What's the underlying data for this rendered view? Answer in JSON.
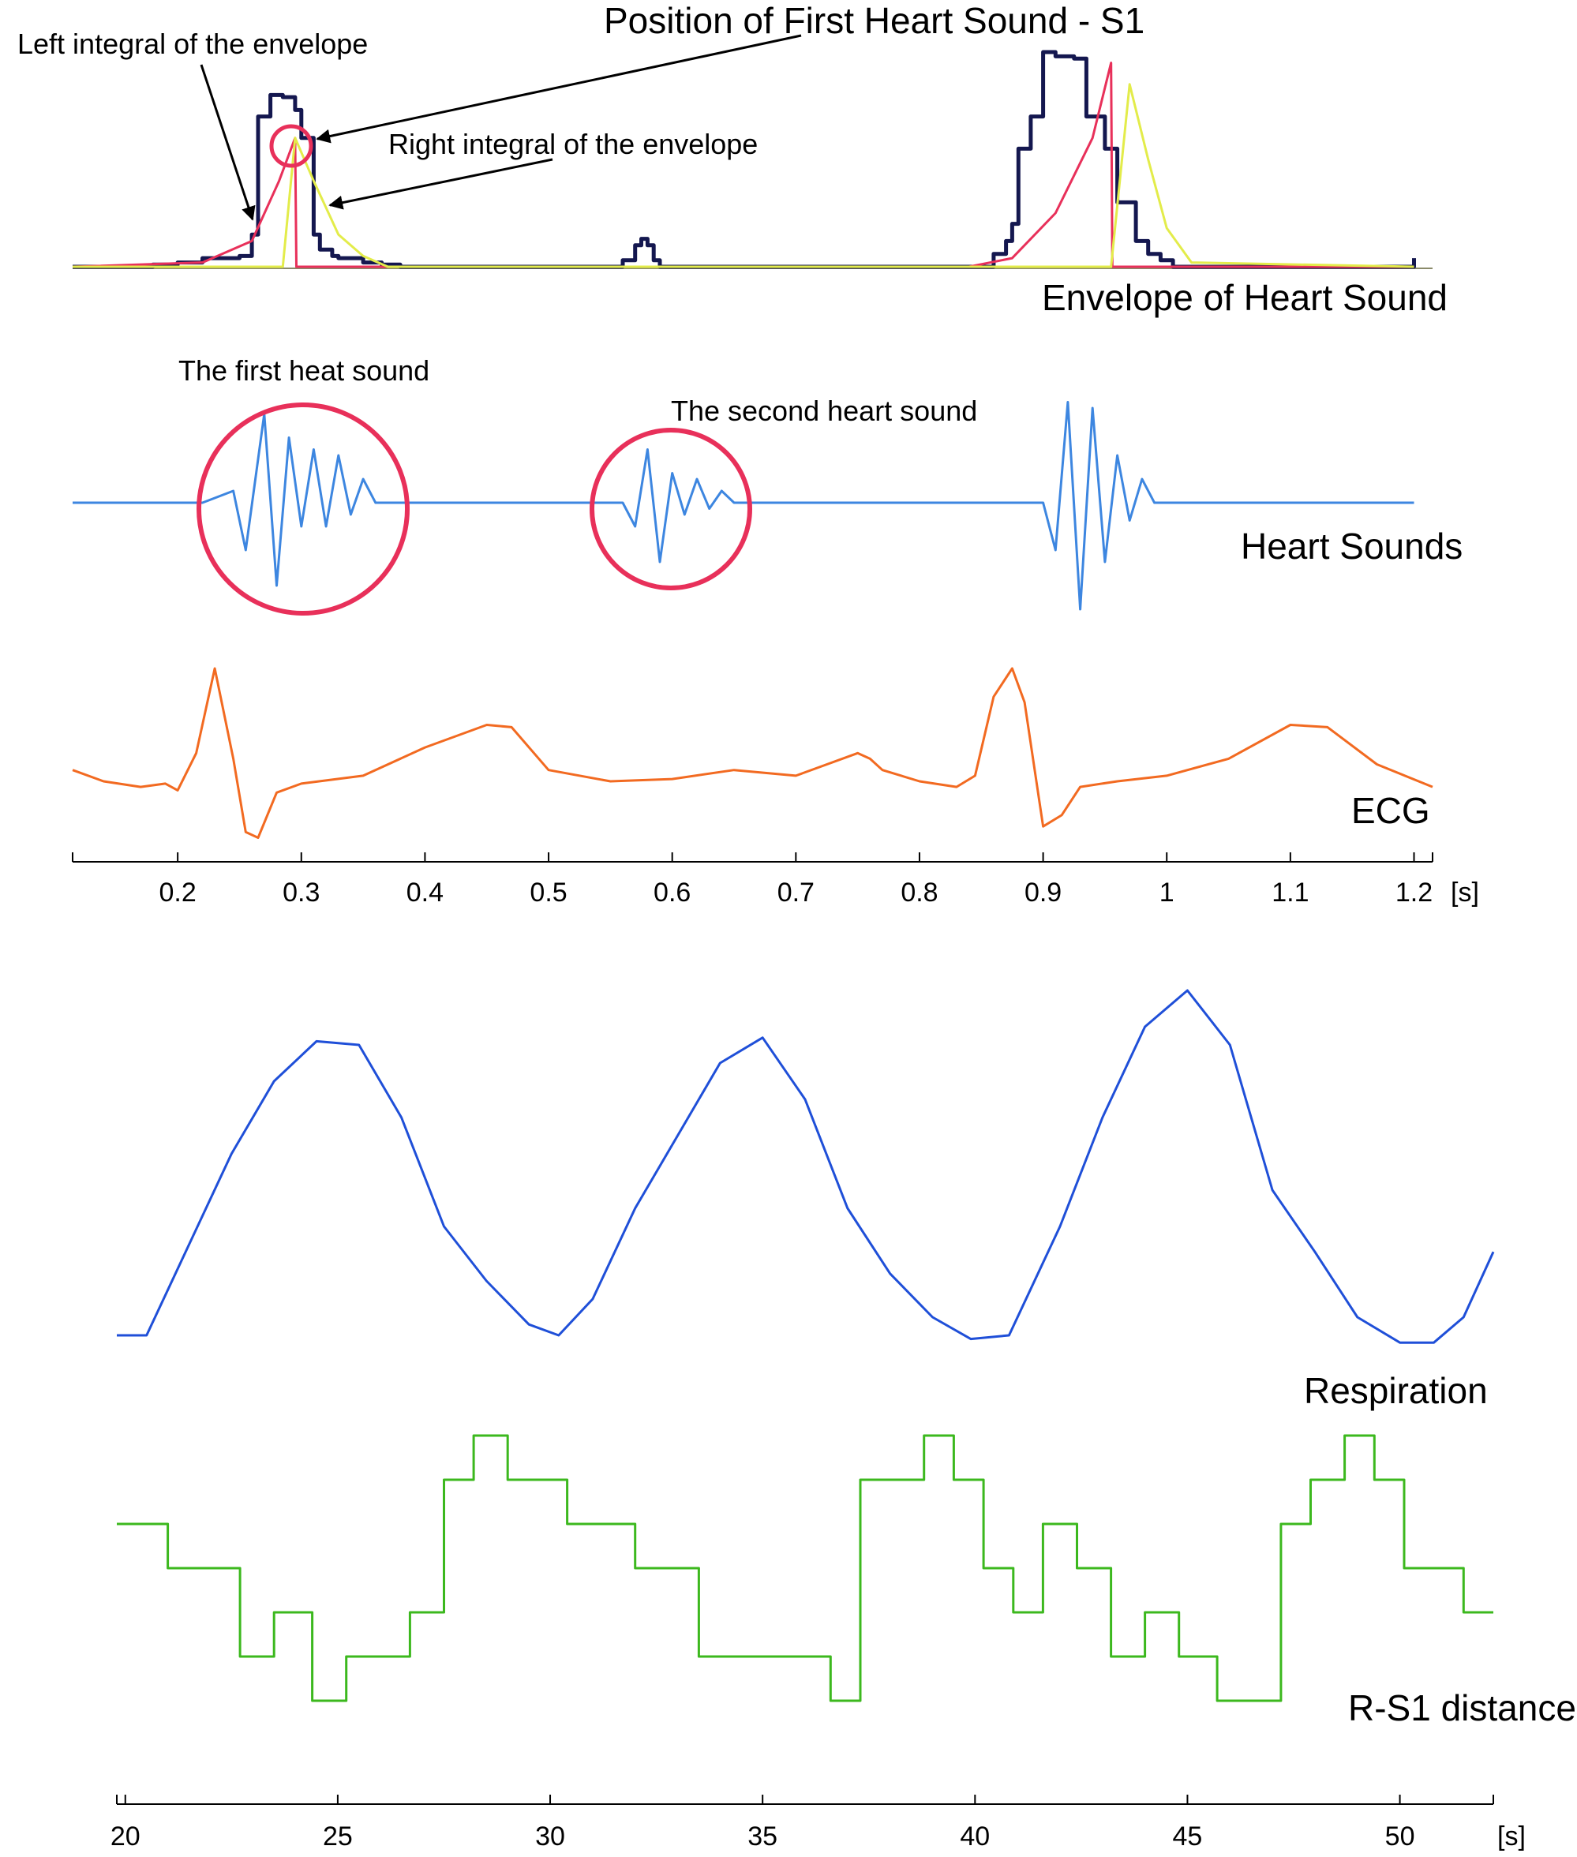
{
  "colors": {
    "envelope": "#14174f",
    "left_integral": "#e8305a",
    "right_integral": "#e3ec4a",
    "heart_sounds": "#3d86e0",
    "ecg": "#f26a21",
    "respiration": "#1f4fd8",
    "rs1": "#3cb81e",
    "circle": "#e8305a",
    "axis": "#000000"
  },
  "annotations": {
    "position_s1": "Position of First Heart Sound - S1",
    "left_integral": "Left integral of the envelope",
    "right_integral": "Right integral of the envelope",
    "envelope": "Envelope of Heart Sound",
    "first_sound": "The first heat sound",
    "second_sound": "The second heart sound",
    "heart_sounds": "Heart Sounds",
    "ecg": "ECG",
    "respiration": "Respiration",
    "rs1": "R-S1 distance"
  },
  "chart_data": [
    {
      "type": "line",
      "panel": "top",
      "xlim": [
        0.115,
        1.215
      ],
      "xticks": [
        "0.2",
        "0.3",
        "0.4",
        "0.5",
        "0.6",
        "0.7",
        "0.8",
        "0.9",
        "1",
        "1.1",
        "1.2"
      ],
      "xunit": "[s]",
      "series": [
        {
          "name": "Envelope of Heart Sound",
          "step": true,
          "x": [
            0.115,
            0.18,
            0.2,
            0.22,
            0.25,
            0.26,
            0.265,
            0.275,
            0.285,
            0.295,
            0.3,
            0.31,
            0.315,
            0.325,
            0.33,
            0.35,
            0.365,
            0.38,
            0.56,
            0.57,
            0.575,
            0.58,
            0.585,
            0.59,
            0.595,
            0.6,
            0.82,
            0.86,
            0.87,
            0.875,
            0.88,
            0.89,
            0.9,
            0.91,
            0.925,
            0.935,
            0.95,
            0.96,
            0.975,
            0.985,
            0.995,
            1.005,
            1.015,
            1.2
          ],
          "y": [
            0.0,
            0.01,
            0.02,
            0.04,
            0.05,
            0.15,
            0.7,
            0.8,
            0.79,
            0.73,
            0.6,
            0.15,
            0.08,
            0.05,
            0.04,
            0.02,
            0.01,
            0.0,
            0.03,
            0.1,
            0.13,
            0.1,
            0.03,
            0.0,
            0.0,
            0.0,
            0.0,
            0.06,
            0.12,
            0.2,
            0.55,
            0.7,
            1.0,
            0.98,
            0.97,
            0.7,
            0.55,
            0.3,
            0.12,
            0.06,
            0.03,
            0.0,
            0.0,
            0.04
          ]
        },
        {
          "name": "Left integral of the envelope",
          "x": [
            0.115,
            0.22,
            0.26,
            0.282,
            0.295,
            0.296,
            0.84,
            0.875,
            0.91,
            0.94,
            0.955,
            0.956,
            1.2
          ],
          "y": [
            0.0,
            0.02,
            0.12,
            0.4,
            0.6,
            0.0,
            0.0,
            0.04,
            0.25,
            0.6,
            0.95,
            0.0,
            0.0
          ]
        },
        {
          "name": "Right integral of the envelope",
          "x": [
            0.115,
            0.285,
            0.295,
            0.31,
            0.33,
            0.35,
            0.37,
            0.9,
            0.955,
            0.97,
            0.985,
            1.0,
            1.02,
            1.2
          ],
          "y": [
            0.0,
            0.0,
            0.6,
            0.4,
            0.15,
            0.05,
            0.0,
            0.0,
            0.0,
            0.85,
            0.5,
            0.18,
            0.02,
            0.0
          ]
        },
        {
          "name": "Heart Sounds",
          "x": [
            0.115,
            0.22,
            0.245,
            0.255,
            0.27,
            0.28,
            0.29,
            0.3,
            0.31,
            0.32,
            0.33,
            0.34,
            0.35,
            0.36,
            0.38,
            0.55,
            0.56,
            0.57,
            0.58,
            0.59,
            0.6,
            0.61,
            0.62,
            0.63,
            0.64,
            0.65,
            0.66,
            0.88,
            0.9,
            0.91,
            0.92,
            0.93,
            0.94,
            0.95,
            0.96,
            0.97,
            0.98,
            0.99,
            1.0,
            1.2
          ],
          "y": [
            0.0,
            0.0,
            0.1,
            -0.4,
            0.75,
            -0.7,
            0.55,
            -0.2,
            0.45,
            -0.2,
            0.4,
            -0.1,
            0.2,
            0.0,
            0.0,
            0.0,
            0.0,
            -0.2,
            0.45,
            -0.5,
            0.25,
            -0.1,
            0.2,
            -0.05,
            0.1,
            0.0,
            0.0,
            0.0,
            0.0,
            -0.4,
            0.85,
            -0.9,
            0.8,
            -0.5,
            0.4,
            -0.15,
            0.2,
            0.0,
            0.0,
            0.0
          ]
        },
        {
          "name": "ECG",
          "x": [
            0.115,
            0.14,
            0.17,
            0.19,
            0.2,
            0.215,
            0.23,
            0.245,
            0.255,
            0.265,
            0.28,
            0.3,
            0.35,
            0.4,
            0.45,
            0.47,
            0.5,
            0.55,
            0.6,
            0.65,
            0.7,
            0.75,
            0.76,
            0.77,
            0.8,
            0.83,
            0.845,
            0.86,
            0.875,
            0.885,
            0.9,
            0.915,
            0.93,
            0.96,
            1.0,
            1.05,
            1.1,
            1.13,
            1.17,
            1.215
          ],
          "y": [
            0.1,
            0.0,
            -0.05,
            -0.02,
            -0.08,
            0.25,
            1.0,
            0.2,
            -0.45,
            -0.5,
            -0.1,
            -0.02,
            0.05,
            0.3,
            0.5,
            0.48,
            0.1,
            0.0,
            0.02,
            0.1,
            0.05,
            0.25,
            0.2,
            0.1,
            0.0,
            -0.05,
            0.05,
            0.75,
            1.0,
            0.7,
            -0.4,
            -0.3,
            -0.05,
            0.0,
            0.05,
            0.2,
            0.5,
            0.48,
            0.15,
            -0.05
          ]
        }
      ]
    },
    {
      "type": "line",
      "panel": "bottom",
      "xlim": [
        19.8,
        52.2
      ],
      "xticks": [
        "20",
        "25",
        "30",
        "35",
        "40",
        "45",
        "50"
      ],
      "xunit": "[s]",
      "series": [
        {
          "name": "Respiration",
          "x": [
            19.8,
            20.5,
            21.5,
            22.5,
            23.5,
            24.5,
            25.5,
            26.5,
            27.5,
            28.5,
            29.5,
            30.2,
            31,
            32,
            33,
            34,
            35,
            36,
            37,
            38,
            39,
            39.9,
            40.8,
            42,
            43,
            44,
            45,
            46,
            47,
            48,
            49,
            50,
            50.8,
            51.5,
            52.2
          ],
          "y": [
            0.05,
            0.05,
            0.3,
            0.55,
            0.75,
            0.86,
            0.85,
            0.65,
            0.35,
            0.2,
            0.08,
            0.05,
            0.15,
            0.4,
            0.6,
            0.8,
            0.87,
            0.7,
            0.4,
            0.22,
            0.1,
            0.04,
            0.05,
            0.35,
            0.65,
            0.9,
            1.0,
            0.85,
            0.45,
            0.28,
            0.1,
            0.03,
            0.03,
            0.1,
            0.28
          ]
        },
        {
          "name": "R-S1 distance",
          "step": true,
          "x": [
            19.8,
            21.0,
            22.7,
            23.5,
            24.4,
            25.2,
            26.7,
            27.5,
            28.2,
            29.0,
            30.4,
            32.0,
            33.5,
            36.6,
            37.3,
            38.8,
            39.5,
            40.2,
            40.9,
            41.6,
            42.4,
            43.2,
            44.0,
            44.8,
            45.7,
            47.2,
            47.9,
            48.7,
            49.4,
            50.1,
            51.5,
            52.2
          ],
          "y": [
            3,
            2,
            0,
            1,
            -1,
            0,
            1,
            4,
            5,
            4,
            3,
            2,
            0,
            -1,
            4,
            5,
            4,
            2,
            1,
            3,
            2,
            0,
            1,
            0,
            -1,
            3,
            4,
            5,
            4,
            2,
            1,
            1
          ]
        }
      ]
    }
  ]
}
